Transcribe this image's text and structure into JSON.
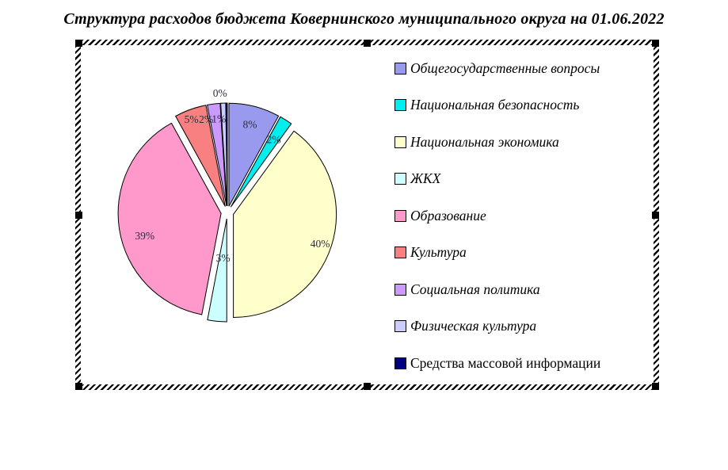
{
  "chart_data": {
    "type": "pie",
    "title": "Структура расходов бюджета Ковернинского муниципального округа на 01.06.2022",
    "legend_position": "right",
    "unit": "%",
    "slices": [
      {
        "label": "Общегосударственные вопросы",
        "value": 8,
        "color": "#9999EE"
      },
      {
        "label": "Национальная безопасность",
        "value": 2,
        "color": "#00EEEE"
      },
      {
        "label": "Национальная экономика",
        "value": 40,
        "color": "#FFFFCC"
      },
      {
        "label": "ЖКХ",
        "value": 3,
        "color": "#CCFFFF"
      },
      {
        "label": "Образование",
        "value": 39,
        "color": "#FF99CC"
      },
      {
        "label": "Культура",
        "value": 5,
        "color": "#F88080"
      },
      {
        "label": "Социальная политика",
        "value": 2,
        "color": "#CC99FF"
      },
      {
        "label": "Физическая культура",
        "value": 1,
        "color": "#CCCCFF"
      },
      {
        "label": "Средства массовой информации",
        "value": 0,
        "color": "#000080"
      }
    ],
    "data_labels": [
      "8%",
      "2%",
      "40%",
      "3%",
      "39%",
      "5%",
      "2%",
      "1%",
      "0%"
    ]
  }
}
